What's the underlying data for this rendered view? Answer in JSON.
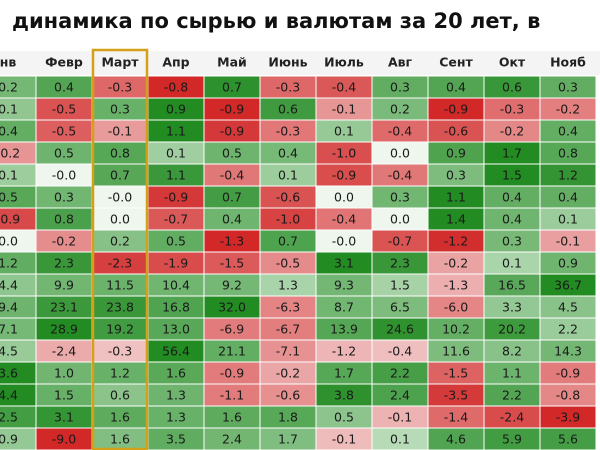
{
  "header": {
    "title": "динамика по сырью и валютам за 20 лет, в"
  },
  "table": {
    "columns": [
      "нв",
      "Февр",
      "Март",
      "Апр",
      "Май",
      "Июнь",
      "Июль",
      "Авг",
      "Сент",
      "Окт",
      "Нояб"
    ],
    "highlight_column": 2,
    "rows": [
      [
        "0.2",
        "0.4",
        "-0.3",
        "-0.8",
        "0.7",
        "-0.3",
        "-0.4",
        "0.3",
        "0.4",
        "0.6",
        "0.3"
      ],
      [
        "0.1",
        "-0.5",
        "0.3",
        "0.9",
        "-0.9",
        "0.6",
        "-0.1",
        "0.2",
        "-0.9",
        "-0.3",
        "-0.2"
      ],
      [
        "0.4",
        "-0.5",
        "-0.1",
        "1.1",
        "-0.9",
        "-0.3",
        "0.1",
        "-0.4",
        "-0.6",
        "-0.2",
        "0.4"
      ],
      [
        "-0.2",
        "0.5",
        "0.8",
        "0.1",
        "0.5",
        "0.4",
        "-1.0",
        "0.0",
        "0.9",
        "1.7",
        "0.8"
      ],
      [
        "0.1",
        "-0.0",
        "0.7",
        "1.1",
        "-0.4",
        "0.1",
        "-0.9",
        "-0.4",
        "0.3",
        "1.5",
        "1.2"
      ],
      [
        "0.5",
        "0.3",
        "-0.0",
        "-0.9",
        "0.7",
        "-0.6",
        "0.0",
        "0.3",
        "1.1",
        "0.4",
        "0.4"
      ],
      [
        "-0.9",
        "0.8",
        "0.0",
        "-0.7",
        "0.4",
        "-1.0",
        "-0.4",
        "0.0",
        "1.4",
        "0.4",
        "0.1"
      ],
      [
        "0.0",
        "-0.2",
        "0.2",
        "0.5",
        "-1.3",
        "0.7",
        "-0.0",
        "-0.7",
        "-1.2",
        "0.3",
        "-0.1"
      ],
      [
        "1.2",
        "2.3",
        "-2.3",
        "-1.9",
        "-1.5",
        "-0.5",
        "3.1",
        "2.3",
        "-0.2",
        "0.1",
        "0.9"
      ],
      [
        "4.4",
        "9.9",
        "11.5",
        "10.4",
        "9.2",
        "1.3",
        "9.3",
        "1.5",
        "-1.3",
        "16.5",
        "36.7"
      ],
      [
        "9.4",
        "23.1",
        "23.8",
        "16.8",
        "32.0",
        "-6.3",
        "8.7",
        "6.5",
        "-6.0",
        "3.3",
        "4.5"
      ],
      [
        "7.1",
        "28.9",
        "19.2",
        "13.0",
        "-6.9",
        "-6.7",
        "13.9",
        "24.6",
        "10.2",
        "20.2",
        "2.2"
      ],
      [
        "4.5",
        "-2.4",
        "-0.3",
        "56.4",
        "21.1",
        "-7.1",
        "-1.2",
        "-0.4",
        "11.6",
        "8.2",
        "14.3"
      ],
      [
        "3.6",
        "1.0",
        "1.2",
        "1.6",
        "-0.9",
        "-0.2",
        "1.7",
        "2.2",
        "-1.5",
        "1.1",
        "-0.9"
      ],
      [
        "4.4",
        "1.5",
        "0.6",
        "1.3",
        "-1.1",
        "-0.6",
        "3.8",
        "2.4",
        "-3.5",
        "2.2",
        "-0.8"
      ],
      [
        "2.5",
        "3.1",
        "1.6",
        "1.3",
        "1.6",
        "1.8",
        "0.5",
        "-0.1",
        "-1.4",
        "-2.4",
        "-3.9"
      ],
      [
        "0.9",
        "-9.0",
        "1.6",
        "3.5",
        "2.4",
        "1.7",
        "-0.1",
        "0.1",
        "4.6",
        "5.9",
        "5.6"
      ]
    ]
  }
}
